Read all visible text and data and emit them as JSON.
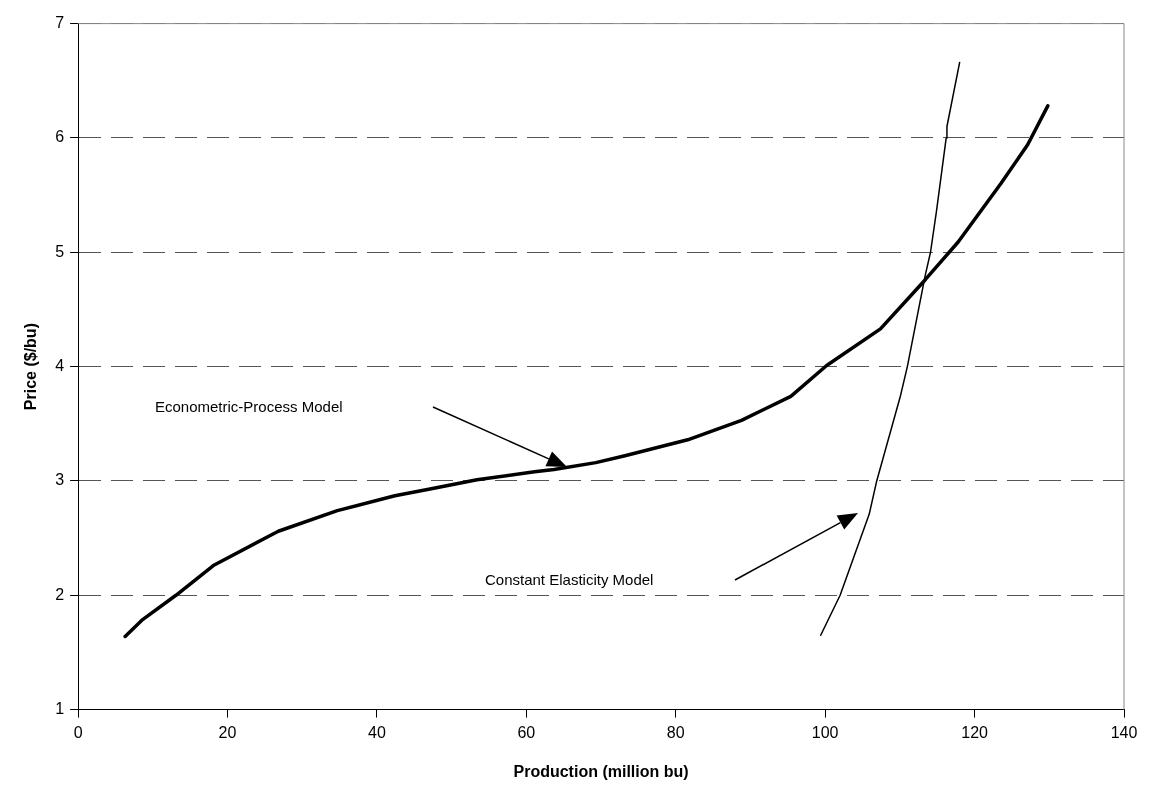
{
  "chart_data": {
    "type": "line",
    "xlabel": "Production (million bu)",
    "ylabel": "Price ($/bu)",
    "xlim": [
      0,
      140
    ],
    "xticks": [
      0,
      20,
      40,
      60,
      80,
      100,
      120,
      140
    ],
    "ylim": [
      1,
      7
    ],
    "yticks": [
      1,
      2,
      3,
      4,
      5,
      6,
      7
    ],
    "grid": "y",
    "marker": "none",
    "line_style": "solid",
    "series": [
      {
        "color": "#000000",
        "x": [
          6.3,
          8.5,
          13.1,
          18.1,
          26.8,
          34.7,
          42.4,
          47.1,
          53.4,
          61.1,
          63.7,
          69.3,
          73.2,
          81.6,
          88.8,
          95.4,
          100.2,
          107.4,
          113.4,
          117.8,
          123.5,
          127.1,
          129.8
        ],
        "values": [
          1.64,
          1.78,
          2.0,
          2.26,
          2.56,
          2.74,
          2.87,
          2.93,
          3.01,
          3.08,
          3.1,
          3.16,
          3.22,
          3.36,
          3.53,
          3.74,
          4.01,
          4.33,
          4.76,
          5.09,
          5.6,
          5.94,
          6.28
        ]
      },
      {
        "color": "#000000",
        "x": [
          99.4,
          102.0,
          105.9,
          106.9,
          110.1,
          111.0,
          113.4,
          114.1,
          114.9,
          116.2,
          116.3,
          118.0
        ],
        "values": [
          1.65,
          2.0,
          2.71,
          3.0,
          3.75,
          4.0,
          4.8,
          5.0,
          5.36,
          6.0,
          6.1,
          6.66
        ]
      }
    ],
    "annotations": [
      "Econometric-Process Model",
      "Constant Elasticity Model"
    ]
  }
}
